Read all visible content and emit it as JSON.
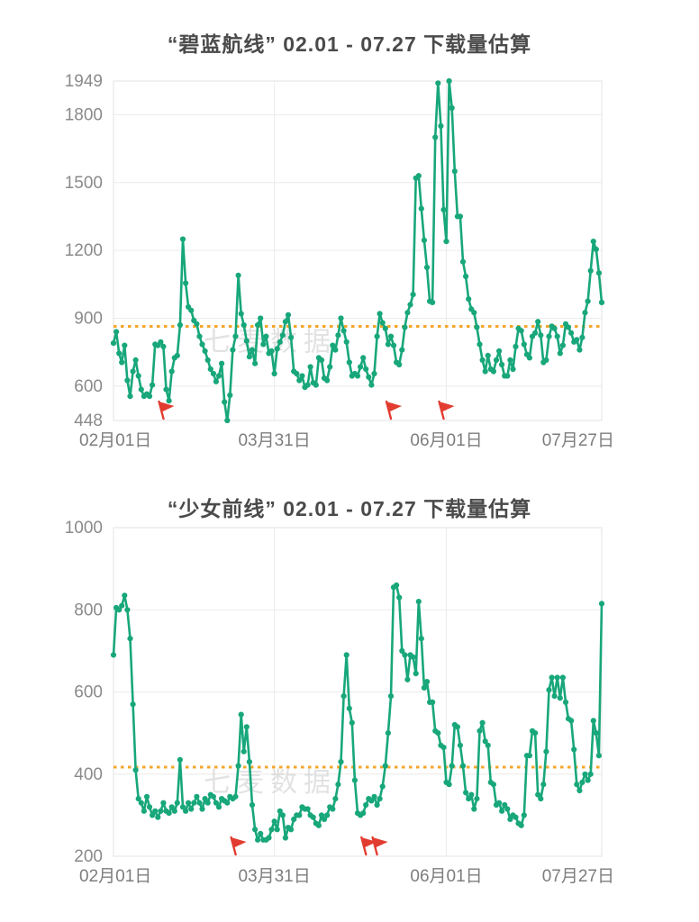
{
  "page": {
    "background": "#ffffff"
  },
  "watermark": "七麦数据",
  "charts": [
    {
      "id": "azur-lane",
      "title": "“碧蓝航线”  02.01 - 07.27 下载量估算",
      "type": "line",
      "line_color": "#18A77A",
      "grid_color": "#ececec",
      "border_color": "#e3e3e3",
      "tick_color": "#8a8a8a",
      "flag_color": "#E23C30",
      "avg_line": {
        "value": 864,
        "color": "#F5A62A"
      },
      "y_axis": {
        "min": 448,
        "max": 1949,
        "ticks": [
          1949,
          1800,
          1500,
          1200,
          900,
          600,
          448
        ]
      },
      "x_axis": {
        "tick_labels": [
          "02月01日",
          "03月31日",
          "06月01日",
          "07月27日"
        ],
        "tick_days": [
          0,
          58,
          120,
          176
        ]
      },
      "flags_days": [
        19,
        101,
        120
      ],
      "chart_data": {
        "type": "line",
        "x_start": "02-01",
        "x_end": "07-27",
        "ylim": [
          448,
          1949
        ],
        "values": [
          790,
          840,
          745,
          705,
          780,
          625,
          555,
          665,
          715,
          645,
          585,
          555,
          565,
          555,
          605,
          785,
          780,
          795,
          775,
          585,
          535,
          665,
          725,
          735,
          870,
          1250,
          1055,
          950,
          935,
          890,
          875,
          820,
          785,
          755,
          715,
          675,
          655,
          620,
          645,
          700,
          530,
          448,
          560,
          760,
          820,
          1090,
          920,
          870,
          800,
          730,
          760,
          700,
          870,
          900,
          785,
          820,
          745,
          755,
          655,
          765,
          795,
          825,
          885,
          915,
          815,
          665,
          655,
          625,
          645,
          595,
          605,
          685,
          615,
          605,
          725,
          715,
          635,
          625,
          685,
          780,
          760,
          825,
          900,
          845,
          795,
          705,
          645,
          655,
          645,
          685,
          725,
          675,
          640,
          605,
          655,
          820,
          920,
          880,
          855,
          785,
          820,
          780,
          705,
          695,
          760,
          860,
          925,
          960,
          1005,
          1520,
          1530,
          1385,
          1245,
          1125,
          975,
          970,
          1700,
          1940,
          1750,
          1380,
          1240,
          1949,
          1830,
          1550,
          1350,
          1350,
          1150,
          1085,
          985,
          940,
          925,
          860,
          785,
          715,
          665,
          735,
          675,
          665,
          715,
          755,
          695,
          645,
          645,
          715,
          675,
          775,
          855,
          845,
          785,
          740,
          725,
          820,
          835,
          885,
          825,
          705,
          715,
          820,
          865,
          855,
          820,
          745,
          780,
          875,
          860,
          835,
          795,
          805,
          760,
          815,
          925,
          975,
          1110,
          1240,
          1205,
          1100,
          970
        ]
      }
    },
    {
      "id": "girls-frontline",
      "title": "“少女前线”  02.01 - 07.27 下载量估算",
      "type": "line",
      "line_color": "#18A77A",
      "grid_color": "#ececec",
      "border_color": "#e3e3e3",
      "tick_color": "#8a8a8a",
      "flag_color": "#E23C30",
      "avg_line": {
        "value": 417,
        "color": "#F5A62A"
      },
      "y_axis": {
        "min": 200,
        "max": 1000,
        "ticks": [
          1000,
          800,
          600,
          400,
          200
        ]
      },
      "x_axis": {
        "tick_labels": [
          "02月01日",
          "03月31日",
          "06月01日",
          "07月27日"
        ],
        "tick_days": [
          0,
          58,
          120,
          176
        ]
      },
      "flags_days": [
        45,
        92,
        96
      ],
      "chart_data": {
        "type": "line",
        "x_start": "02-01",
        "x_end": "07-27",
        "ylim": [
          200,
          1000
        ],
        "values": [
          690,
          805,
          800,
          810,
          835,
          800,
          730,
          570,
          410,
          340,
          330,
          310,
          345,
          320,
          300,
          310,
          295,
          310,
          330,
          310,
          305,
          320,
          310,
          330,
          435,
          320,
          310,
          330,
          315,
          330,
          345,
          330,
          315,
          340,
          330,
          350,
          345,
          330,
          320,
          340,
          335,
          330,
          345,
          340,
          345,
          420,
          545,
          455,
          515,
          430,
          325,
          265,
          240,
          255,
          240,
          240,
          245,
          265,
          285,
          265,
          310,
          300,
          245,
          270,
          265,
          290,
          300,
          300,
          320,
          315,
          315,
          300,
          295,
          280,
          275,
          300,
          290,
          300,
          320,
          315,
          340,
          375,
          430,
          590,
          690,
          560,
          525,
          385,
          305,
          300,
          305,
          325,
          340,
          335,
          345,
          325,
          340,
          370,
          420,
          500,
          590,
          855,
          860,
          830,
          700,
          690,
          630,
          690,
          685,
          645,
          820,
          730,
          610,
          625,
          575,
          575,
          505,
          500,
          470,
          465,
          380,
          375,
          420,
          520,
          515,
          470,
          420,
          355,
          340,
          350,
          315,
          340,
          505,
          525,
          480,
          470,
          380,
          375,
          325,
          330,
          310,
          325,
          315,
          290,
          300,
          295,
          280,
          275,
          300,
          445,
          445,
          505,
          500,
          350,
          340,
          375,
          455,
          605,
          635,
          590,
          635,
          585,
          635,
          575,
          535,
          530,
          460,
          375,
          360,
          380,
          400,
          385,
          400,
          530,
          500,
          445,
          815
        ]
      }
    }
  ]
}
